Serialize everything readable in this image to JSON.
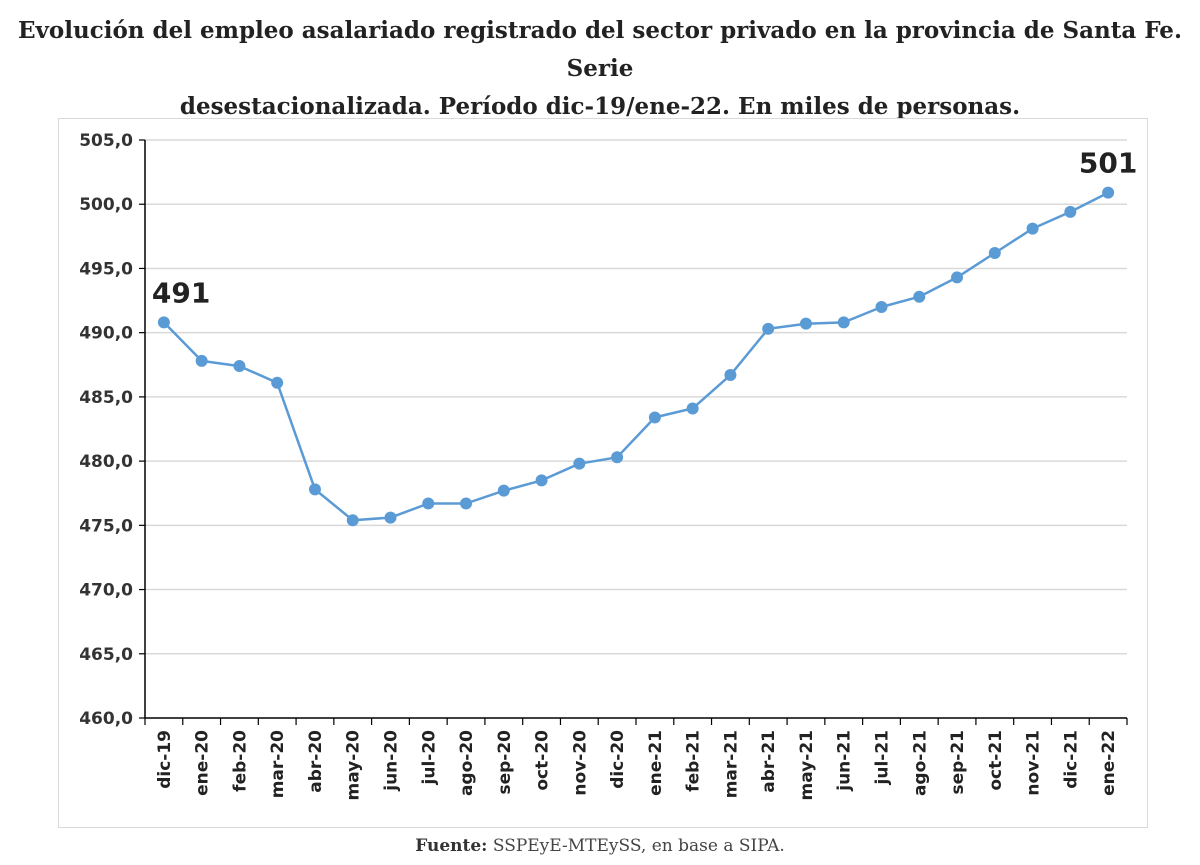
{
  "title_line1": "Evolución del empleo asalariado registrado del sector privado en la provincia de Santa Fe. Serie",
  "title_line2": "desestacionalizada. Período dic-19/ene-22. En miles de personas.",
  "source_label": "Fuente:",
  "source_text": " SSPEyE-MTEySS, en base a SIPA.",
  "colors": {
    "line": "#5b9bd5",
    "grid": "#d9d9d9",
    "axis": "#000000"
  },
  "chart_data": {
    "type": "line",
    "title": "Evolución del empleo asalariado registrado del sector privado en la provincia de Santa Fe. Serie desestacionalizada. Período dic-19/ene-22. En miles de personas.",
    "xlabel": "",
    "ylabel": "",
    "ylim": [
      460,
      505
    ],
    "yticks": [
      "460,0",
      "465,0",
      "470,0",
      "475,0",
      "480,0",
      "485,0",
      "490,0",
      "495,0",
      "500,0",
      "505,0"
    ],
    "grid": true,
    "legend": "none",
    "categories": [
      "dic-19",
      "ene-20",
      "feb-20",
      "mar-20",
      "abr-20",
      "may-20",
      "jun-20",
      "jul-20",
      "ago-20",
      "sep-20",
      "oct-20",
      "nov-20",
      "dic-20",
      "ene-21",
      "feb-21",
      "mar-21",
      "abr-21",
      "may-21",
      "jun-21",
      "jul-21",
      "ago-21",
      "sep-21",
      "oct-21",
      "nov-21",
      "dic-21",
      "ene-22"
    ],
    "series": [
      {
        "values": [
          490.8,
          487.8,
          487.4,
          486.1,
          477.8,
          475.4,
          475.6,
          476.7,
          476.7,
          477.7,
          478.5,
          479.8,
          480.3,
          483.4,
          484.1,
          486.7,
          490.3,
          490.7,
          490.8,
          492.0,
          492.8,
          494.3,
          496.2,
          498.1,
          499.4,
          500.9
        ]
      }
    ],
    "annotations": [
      {
        "index": 0,
        "text": "491"
      },
      {
        "index": 25,
        "text": "501"
      }
    ]
  }
}
